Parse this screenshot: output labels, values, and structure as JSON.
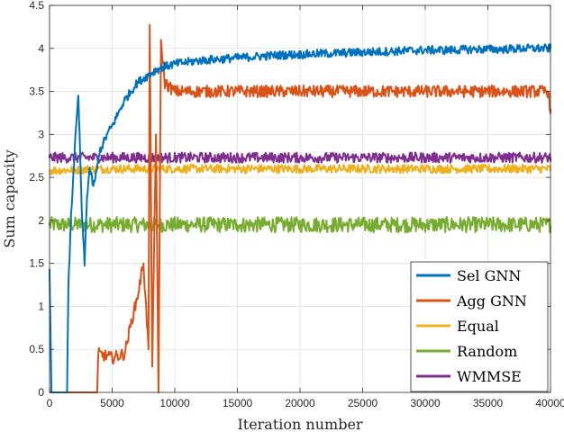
{
  "chart_data": {
    "type": "line",
    "title": "",
    "xlabel": "Iteration number",
    "ylabel": "Sum capacity",
    "xlim": [
      0,
      40000
    ],
    "ylim": [
      0,
      4.5
    ],
    "x_ticks": [
      0,
      5000,
      10000,
      15000,
      20000,
      25000,
      30000,
      35000,
      40000
    ],
    "x_tick_labels": [
      "0",
      "5000",
      "10000",
      "15000",
      "20000",
      "25000",
      "30000",
      "35000",
      "40000"
    ],
    "y_ticks": [
      0,
      0.5,
      1,
      1.5,
      2,
      2.5,
      3,
      3.5,
      4,
      4.5
    ],
    "y_tick_labels": [
      "0",
      "0.5",
      "1",
      "1.5",
      "2",
      "2.5",
      "3",
      "3.5",
      "4",
      "4.5"
    ],
    "grid": true,
    "legend_position": "bottom-right",
    "series": [
      {
        "name": "Sel GNN",
        "color": "#0072BD",
        "x": [
          0,
          150,
          300,
          600,
          1000,
          1400,
          1500,
          1700,
          2000,
          2300,
          2600,
          2800,
          3000,
          3200,
          3500,
          3800,
          4000,
          4300,
          4600,
          5000,
          5500,
          6000,
          6500,
          7000,
          7500,
          8000,
          8500,
          9000,
          9500,
          10000,
          12000,
          14000,
          16000,
          18000,
          20000,
          22000,
          24000,
          26000,
          28000,
          30000,
          32000,
          34000,
          36000,
          38000,
          40000
        ],
        "values": [
          1.4,
          0.0,
          0.0,
          0.0,
          0.0,
          0.0,
          1.2,
          2.0,
          2.8,
          3.45,
          2.0,
          1.5,
          2.3,
          2.6,
          2.4,
          2.6,
          2.8,
          2.9,
          3.0,
          3.1,
          3.25,
          3.4,
          3.5,
          3.6,
          3.65,
          3.7,
          3.75,
          3.78,
          3.8,
          3.82,
          3.86,
          3.88,
          3.9,
          3.92,
          3.93,
          3.94,
          3.95,
          3.96,
          3.97,
          3.98,
          3.98,
          3.99,
          3.99,
          4.0,
          4.0
        ]
      },
      {
        "name": "Agg GNN",
        "color": "#D95319",
        "x": [
          0,
          2000,
          3800,
          3900,
          5000,
          6000,
          6500,
          7000,
          7500,
          7900,
          8000,
          8200,
          8500,
          8700,
          8900,
          9200,
          10000,
          11000,
          12000,
          15000,
          20000,
          25000,
          30000,
          35000,
          39800,
          40000
        ],
        "values": [
          0.0,
          0.0,
          0.0,
          0.45,
          0.4,
          0.45,
          0.8,
          1.1,
          1.5,
          0.5,
          4.25,
          0.3,
          3.0,
          0.0,
          4.1,
          3.6,
          3.5,
          3.5,
          3.5,
          3.5,
          3.5,
          3.5,
          3.5,
          3.5,
          3.5,
          3.3
        ]
      },
      {
        "name": "Equal",
        "color": "#EDB120",
        "x": [
          0,
          5000,
          10000,
          15000,
          20000,
          25000,
          30000,
          35000,
          40000
        ],
        "values": [
          2.58,
          2.6,
          2.6,
          2.6,
          2.6,
          2.6,
          2.6,
          2.6,
          2.6
        ]
      },
      {
        "name": "Random",
        "color": "#77AC30",
        "x": [
          0,
          5000,
          10000,
          15000,
          20000,
          25000,
          30000,
          35000,
          40000
        ],
        "values": [
          1.95,
          1.95,
          1.95,
          1.95,
          1.95,
          1.95,
          1.95,
          1.95,
          1.95
        ]
      },
      {
        "name": "WMMSE",
        "color": "#7E2F8E",
        "x": [
          0,
          5000,
          10000,
          15000,
          20000,
          25000,
          30000,
          35000,
          40000
        ],
        "values": [
          2.73,
          2.73,
          2.73,
          2.73,
          2.73,
          2.73,
          2.73,
          2.73,
          2.73
        ]
      }
    ],
    "noise": {
      "Sel GNN": 0.05,
      "Agg GNN": 0.07,
      "Equal": 0.05,
      "Random": 0.09,
      "WMMSE": 0.06
    }
  }
}
